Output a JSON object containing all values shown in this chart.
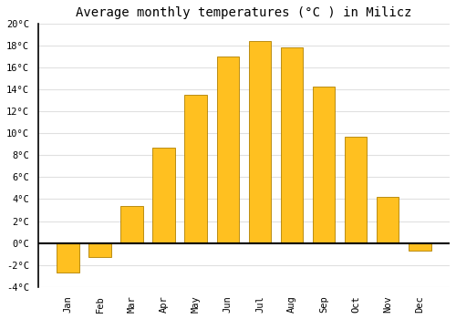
{
  "title": "Average monthly temperatures (°C ) in Milicz",
  "months": [
    "Jan",
    "Feb",
    "Mar",
    "Apr",
    "May",
    "Jun",
    "Jul",
    "Aug",
    "Sep",
    "Oct",
    "Nov",
    "Dec"
  ],
  "values": [
    -2.7,
    -1.3,
    3.4,
    8.7,
    13.5,
    17.0,
    18.4,
    17.9,
    14.3,
    9.7,
    4.2,
    -0.7
  ],
  "bar_color": "#FFC020",
  "bar_edge_color": "#B08000",
  "background_color": "#FFFFFF",
  "grid_color": "#E0E0E0",
  "zero_line_color": "#000000",
  "left_spine_color": "#000000",
  "ylim": [
    -4,
    20
  ],
  "yticks": [
    -4,
    -2,
    0,
    2,
    4,
    6,
    8,
    10,
    12,
    14,
    16,
    18,
    20
  ],
  "title_fontsize": 10,
  "tick_fontsize": 7.5,
  "font_family": "monospace"
}
